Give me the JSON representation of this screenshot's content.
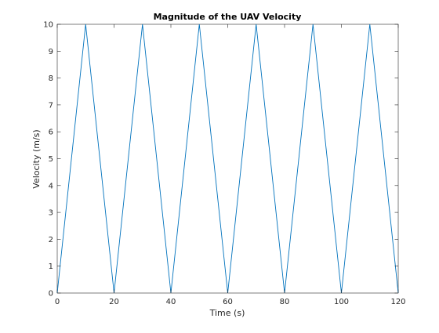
{
  "chart_data": {
    "type": "line",
    "title": "Magnitude of the UAV Velocity",
    "xlabel": "Time (s)",
    "ylabel": "Velocity (m/s)",
    "xlim": [
      0,
      120
    ],
    "ylim": [
      0,
      10
    ],
    "xticks": [
      0,
      20,
      40,
      60,
      80,
      100,
      120
    ],
    "yticks": [
      0,
      1,
      2,
      3,
      4,
      5,
      6,
      7,
      8,
      9,
      10
    ],
    "grid": false,
    "series": [
      {
        "color": "#0072bd",
        "x": [
          0,
          10,
          20,
          30,
          40,
          50,
          60,
          70,
          80,
          90,
          100,
          110,
          120
        ],
        "y": [
          0,
          10,
          0,
          10,
          0,
          10,
          0,
          10,
          0,
          10,
          0,
          10,
          0
        ]
      }
    ]
  }
}
